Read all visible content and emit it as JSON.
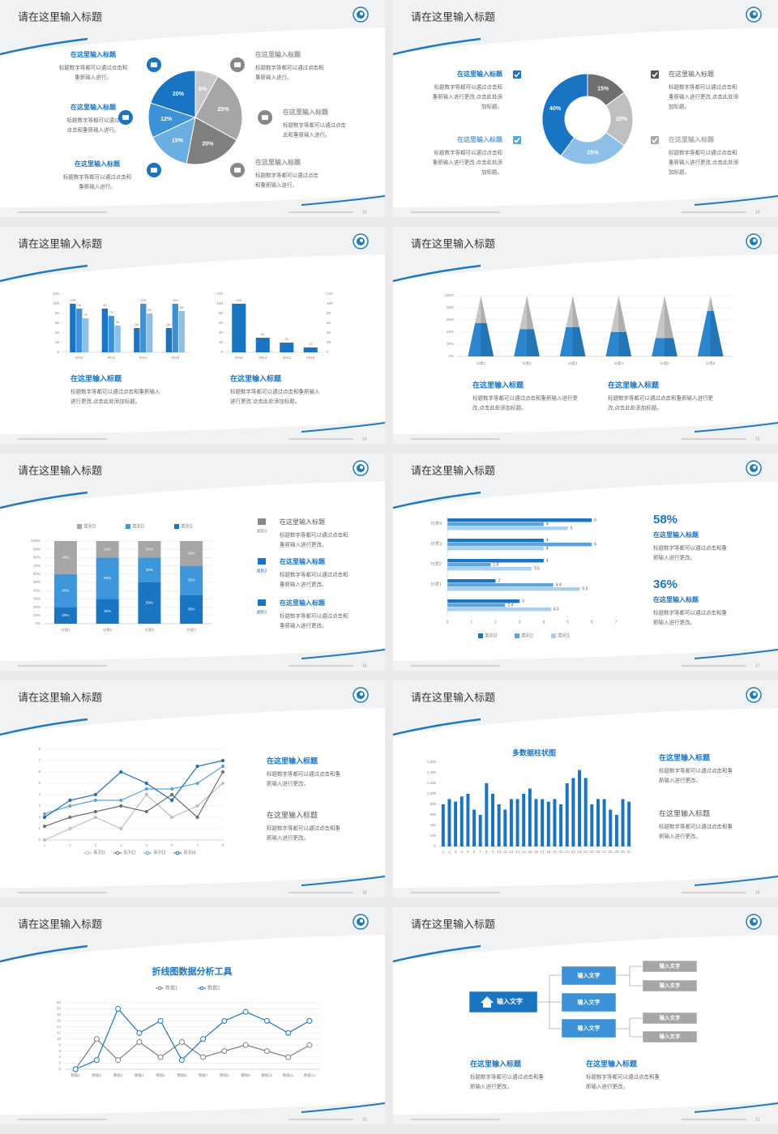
{
  "slides": [
    {
      "title": "请在这里输入标题",
      "page": "12",
      "chart_data": {
        "type": "pie",
        "values": [
          8,
          25,
          20,
          15,
          12,
          20
        ],
        "value_labels": [
          "8%",
          "25%",
          "20%",
          "15%",
          "12%",
          "20%"
        ],
        "colors": [
          "#c9c9c9",
          "#a6a6a6",
          "#7f7f7f",
          "#6aaee2",
          "#3d91d6",
          "#1a74c4"
        ]
      },
      "items": [
        {
          "title": "在这里输入标题",
          "lines": [
            "标题数字等都可以通过点击和",
            "重新输入进行。"
          ]
        },
        {
          "title": "在这里输入标题",
          "lines": [
            "标题数字等都可以通过",
            "点击和重新输入进行。"
          ]
        },
        {
          "title": "在这里输入标题",
          "lines": [
            "标题数字等都可以通过点击和",
            "重新输入进行。"
          ]
        },
        {
          "title": "在这里输入标题",
          "lines": [
            "标题数字等都可以通过点击和",
            "重新输入进行。"
          ]
        },
        {
          "title": "在这里输入标题",
          "lines": [
            "标题数字等都可以通过点击",
            "此和重新输入进行。"
          ]
        },
        {
          "title": "在这里输入标题",
          "lines": [
            "标题数字等都可以通过点击",
            "和重新输入进行。"
          ]
        }
      ]
    },
    {
      "title": "请在这里输入标题",
      "page": "13",
      "chart_data": {
        "type": "donut",
        "values": [
          15,
          20,
          25,
          40
        ],
        "value_labels": [
          "15%",
          "20%",
          "25%",
          "40%"
        ],
        "colors": [
          "#6f6f6f",
          "#bfbfbf",
          "#8cc0e8",
          "#1a74c4"
        ]
      },
      "items": [
        {
          "title": "在这里输入标题",
          "lines": [
            "标题数字等都可以通过点击和",
            "重新输入进行更改,点击此处添",
            "加标题。"
          ]
        },
        {
          "title": "在这里输入标题",
          "lines": [
            "标题数字等都可以通过点击和",
            "重新输入进行更改,点击此处添",
            "加标题。"
          ]
        },
        {
          "title": "在这里输入标题",
          "lines": [
            "标题数字等都可以通过点击和",
            "重新输入进行更改,点击此处添",
            "加标题。"
          ]
        },
        {
          "title": "在这里输入标题",
          "lines": [
            "标题数字等都可以通过点击和",
            "重新输入进行更改,点击此处添",
            "加标题。"
          ]
        }
      ]
    },
    {
      "title": "请在这里输入标题",
      "page": "14",
      "chart_data": [
        {
          "type": "bar",
          "categories": [
            "2010",
            "2012",
            "2014",
            "2016"
          ],
          "series": [
            {
              "color": "#1a74c4",
              "values": [
                100,
                90,
                50,
                50
              ]
            },
            {
              "color": "#3d91d6",
              "values": [
                90,
                75,
                100,
                100
              ]
            },
            {
              "color": "#8cc0e8",
              "values": [
                70,
                55,
                80,
                85
              ]
            }
          ],
          "ylim": [
            0,
            120
          ],
          "yticks": [
            0,
            20,
            40,
            60,
            80,
            100,
            120
          ],
          "grid": false
        },
        {
          "type": "bar",
          "categories": [
            "2016",
            "2014",
            "2012",
            "2010"
          ],
          "values": [
            100,
            30,
            20,
            10
          ],
          "color": "#1a74c4",
          "ylim": [
            0,
            120
          ],
          "yticks": [
            0,
            20,
            40,
            60,
            80,
            100,
            120
          ],
          "grid": false
        }
      ],
      "items": [
        {
          "title": "在这里输入标题",
          "lines": [
            "标题数字等都可以通过点击和重新输入",
            "进行更改,点击此处添加标题。"
          ]
        },
        {
          "title": "在这里输入标题",
          "lines": [
            "标题数字等都可以通过点击和重新输入",
            "进行更改,点击此处添加标题。"
          ]
        }
      ]
    },
    {
      "title": "请在这里输入标题",
      "page": "15",
      "chart_data": {
        "type": "pyramid",
        "categories": [
          "分类1",
          "分类2",
          "分类3",
          "分类4",
          "分类5",
          "分类6"
        ],
        "series": [
          {
            "color": "#2a86cf",
            "values": [
              55,
              45,
              48,
              40,
              30,
              75
            ]
          },
          {
            "color": "#c6c6c6",
            "values": [
              45,
              55,
              52,
              60,
              70,
              25
            ]
          }
        ],
        "ylim": [
          0,
          100
        ],
        "yticks": [
          {
            "value": 0,
            "label": "0%"
          },
          {
            "value": 20,
            "label": "20%"
          },
          {
            "value": 40,
            "label": "40%"
          },
          {
            "value": 60,
            "label": "60%"
          },
          {
            "value": 80,
            "label": "80%"
          },
          {
            "value": 100,
            "label": "100%"
          }
        ],
        "grid": true
      },
      "items": [
        {
          "title": "在这里输入标题",
          "lines": [
            "标题数字等都可以通过点击和重新输入进行更",
            "改,点击此处添加标题。"
          ]
        },
        {
          "title": "在这里输入标题",
          "lines": [
            "标题数字等都可以通过点击和重新输入进行更",
            "改,点击此处添加标题。"
          ]
        }
      ]
    },
    {
      "title": "请在这里输入标题",
      "page": "16",
      "chart_data": {
        "type": "stacked_bar",
        "categories": [
          "分类1",
          "分类2",
          "分类3",
          "分类4"
        ],
        "series": [
          {
            "name": "类别1",
            "color": "#1a74c4",
            "values": [
              20,
              30,
              50,
              35
            ],
            "value_labels": [
              "20%",
              "30%",
              "50%",
              "35%"
            ]
          },
          {
            "name": "类别2",
            "color": "#3d97da",
            "values": [
              40,
              50,
              30,
              35
            ],
            "value_labels": [
              "40%",
              "50%",
              "30%",
              "35%"
            ]
          },
          {
            "name": "类别3",
            "color": "#a6a6a6",
            "values": [
              40,
              20,
              20,
              30
            ],
            "value_labels": [
              "40%",
              "20%",
              "20%",
              "30%"
            ]
          }
        ],
        "ylim": [
          0,
          100
        ],
        "yticks": [
          {
            "value": 0,
            "label": "0%"
          },
          {
            "value": 10,
            "label": "10%"
          },
          {
            "value": 20,
            "label": "20%"
          },
          {
            "value": 30,
            "label": "30%"
          },
          {
            "value": 40,
            "label": "40%"
          },
          {
            "value": 50,
            "label": "50%"
          },
          {
            "value": 60,
            "label": "60%"
          },
          {
            "value": 70,
            "label": "70%"
          },
          {
            "value": 80,
            "label": "80%"
          },
          {
            "value": 90,
            "label": "90%"
          },
          {
            "value": 100,
            "label": "100%"
          }
        ],
        "grid": true
      },
      "items": [
        {
          "label": "类别3",
          "title": "在这里输入标题",
          "lines": [
            "标题数字等都可以通过点击和",
            "重新输入进行更改。"
          ]
        },
        {
          "label": "类别2",
          "title": "在这里输入标题",
          "lines": [
            "标题数字等都可以通过点击和",
            "重新输入进行更改。"
          ]
        },
        {
          "label": "类别1",
          "title": "在这里输入标题",
          "lines": [
            "标题数字等都可以通过点击和",
            "重新输入进行更改。"
          ]
        }
      ]
    },
    {
      "title": "请在这里输入标题",
      "page": "17",
      "chart_data": {
        "type": "hbar",
        "categories": [
          null,
          "分类1",
          "分类2",
          "分类3",
          "分类4"
        ],
        "series": [
          {
            "name": "类别3",
            "color": "#1a74c4",
            "values": [
              3,
              2,
              4,
              4,
              6
            ]
          },
          {
            "name": "类别2",
            "color": "#5aa5de",
            "values": [
              2.4,
              4.4,
              1.8,
              6,
              4
            ]
          },
          {
            "name": "类别1",
            "color": "#a9d0ef",
            "values": [
              4.3,
              5.5,
              3.5,
              4,
              5
            ]
          }
        ],
        "xlim": [
          0,
          7
        ],
        "xticks": [
          0,
          1,
          2,
          3,
          4,
          5,
          6,
          7
        ]
      },
      "items": [
        {
          "value": "58%",
          "title": "在这里输入标题",
          "lines": [
            "标题数字等都可以通过点击和重",
            "新输入进行更改。"
          ]
        },
        {
          "value": "36%",
          "title": "在这里输入标题",
          "lines": [
            "标题数字等都可以通过点击和重",
            "新输入进行更改。"
          ]
        }
      ]
    },
    {
      "title": "请在这里输入标题",
      "page": "18",
      "chart_data": {
        "type": "line",
        "x": [
          1,
          2,
          3,
          4,
          5,
          6,
          7,
          8
        ],
        "xlim": [
          1,
          8
        ],
        "xticks": [
          1,
          2,
          3,
          4,
          5,
          6,
          7,
          8
        ],
        "ylim": [
          0,
          8
        ],
        "yticks": [
          0,
          1,
          2,
          3,
          4,
          5,
          6,
          7,
          8
        ],
        "grid": true,
        "series": [
          {
            "name": "系列1",
            "color": "#bfbfbf",
            "values": [
              0,
              1,
              2,
              1,
              4,
              2,
              3,
              5
            ]
          },
          {
            "name": "系列2",
            "color": "#6f6f6f",
            "values": [
              1.2,
              2,
              2.5,
              3,
              2.5,
              4,
              2,
              6
            ]
          },
          {
            "name": "系列3",
            "color": "#5aa5de",
            "values": [
              2.3,
              3,
              3.5,
              3.5,
              4.5,
              4.5,
              5,
              6.5
            ]
          },
          {
            "name": "系列4",
            "color": "#1a6fc0",
            "values": [
              2,
              3.5,
              4,
              6,
              5,
              3.5,
              6.5,
              7
            ]
          }
        ]
      },
      "items": [
        {
          "title": "在这里输入标题",
          "lines": [
            "标题数字等都可以通过点击和重",
            "新输入进行更改。"
          ]
        },
        {
          "title": "在这里输入标题",
          "lines": [
            "标题数字等都可以通过点击和重",
            "新输入进行更改。"
          ]
        }
      ]
    },
    {
      "title": "请在这里输入标题",
      "page": "19",
      "chart_data": {
        "type": "bar",
        "title": "多数据柱状图",
        "color": "#1a74c4",
        "categories": [
          "1",
          "2",
          "3",
          "4",
          "5",
          "6",
          "7",
          "8",
          "9",
          "10",
          "11",
          "12",
          "13",
          "14",
          "15",
          "16",
          "17",
          "18",
          "19",
          "20",
          "21",
          "22",
          "23",
          "24",
          "25",
          "26",
          "27",
          "28",
          "29",
          "30",
          "31"
        ],
        "values": [
          800,
          900,
          850,
          950,
          1000,
          700,
          600,
          1200,
          1000,
          800,
          700,
          900,
          900,
          1000,
          1100,
          900,
          900,
          850,
          900,
          800,
          1200,
          1300,
          1450,
          1300,
          800,
          900,
          900,
          700,
          600,
          900,
          850
        ],
        "ylim": [
          0,
          1600
        ],
        "yticks": [
          0,
          200,
          400,
          600,
          800,
          {
            "value": 1000,
            "label": "1,000"
          },
          {
            "value": 1200,
            "label": "1,200"
          },
          {
            "value": 1400,
            "label": "1,400"
          },
          {
            "value": 1600,
            "label": "1,600"
          }
        ],
        "grid": false
      },
      "items": [
        {
          "title": "在这里输入标题",
          "lines": [
            "标题数字等都可以通过点击和重",
            "新输入进行更改。"
          ]
        },
        {
          "title": "在这里输入标题",
          "lines": [
            "标题数字等都可以通过点击和重",
            "新输入进行更改。"
          ]
        }
      ]
    },
    {
      "title": "请在这里输入标题",
      "page": "20",
      "chart_data": {
        "type": "line",
        "title": "折线图数据分析工具",
        "categories": [
          "数据1",
          "数据2",
          "数据3",
          "数据4",
          "数据5",
          "数据6",
          "数据7",
          "数据8",
          "数据9",
          "数据10",
          "数据11",
          "数据12"
        ],
        "series": [
          {
            "name": "数据1",
            "color": "#7f7f7f",
            "values": [
              0,
              10,
              3,
              9,
              4,
              9,
              4,
              6,
              8,
              6,
              4,
              8
            ]
          },
          {
            "name": "数据2",
            "color": "#1a74c4",
            "values": [
              0,
              3,
              20,
              12,
              16,
              3,
              10,
              16,
              19,
              16,
              12,
              16
            ]
          }
        ],
        "ylim": [
          0,
          22
        ],
        "yticks": [
          0,
          2,
          4,
          6,
          8,
          10,
          12,
          14,
          16,
          18,
          20,
          22
        ],
        "grid": true
      }
    },
    {
      "title": "请在这里输入标题",
      "page": "21",
      "diagram": {
        "root": "输入文字",
        "branches": [
          "输入文字",
          "输入文字",
          "输入文字"
        ],
        "leaves": [
          "输入文字",
          "输入文字",
          "输入文字",
          "输入文字"
        ]
      },
      "items": [
        {
          "title": "在这里输入标题",
          "lines": [
            "标题数字等都可以通过点击和重",
            "新输入进行更改。"
          ]
        },
        {
          "title": "在这里输入标题",
          "lines": [
            "标题数字等都可以通过点击和重",
            "新输入进行更改。"
          ]
        }
      ]
    }
  ]
}
